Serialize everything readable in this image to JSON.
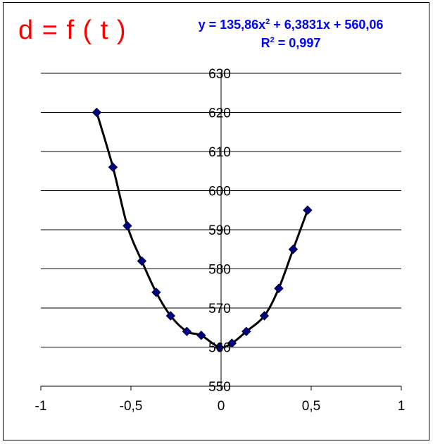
{
  "chart_data": {
    "type": "scatter",
    "title": "d = f ( t )",
    "xlabel": "",
    "ylabel": "",
    "xlim": [
      -1,
      1
    ],
    "ylim": [
      550,
      630
    ],
    "x_ticks": [
      "-1",
      "-0,5",
      "0",
      "0,5",
      "1"
    ],
    "x_tick_values": [
      -1,
      -0.5,
      0,
      0.5,
      1
    ],
    "y_ticks": [
      "550",
      "560",
      "570",
      "580",
      "590",
      "600",
      "610",
      "620",
      "630"
    ],
    "y_tick_values": [
      550,
      560,
      570,
      580,
      590,
      600,
      610,
      620,
      630
    ],
    "grid": "horizontal",
    "series": [
      {
        "x": [
          -0.69,
          -0.6,
          -0.52,
          -0.44,
          -0.36,
          -0.28,
          -0.19,
          -0.11,
          -0.01,
          0.06,
          0.14,
          0.24,
          0.32,
          0.4,
          0.48
        ],
        "y": [
          620,
          606,
          591,
          582,
          574,
          568,
          564,
          563,
          560,
          561,
          564,
          568,
          575,
          585,
          595
        ],
        "color": "#000080"
      }
    ],
    "trendline": {
      "type": "polynomial",
      "order": 2,
      "color": "#000000",
      "equation_prefix": "y = 135,86x",
      "equation_exp": "2",
      "equation_suffix": " + 6,3831x + 560,06",
      "r2_prefix": "R",
      "r2_exp": "2",
      "r2_suffix": " = 0,997"
    }
  }
}
